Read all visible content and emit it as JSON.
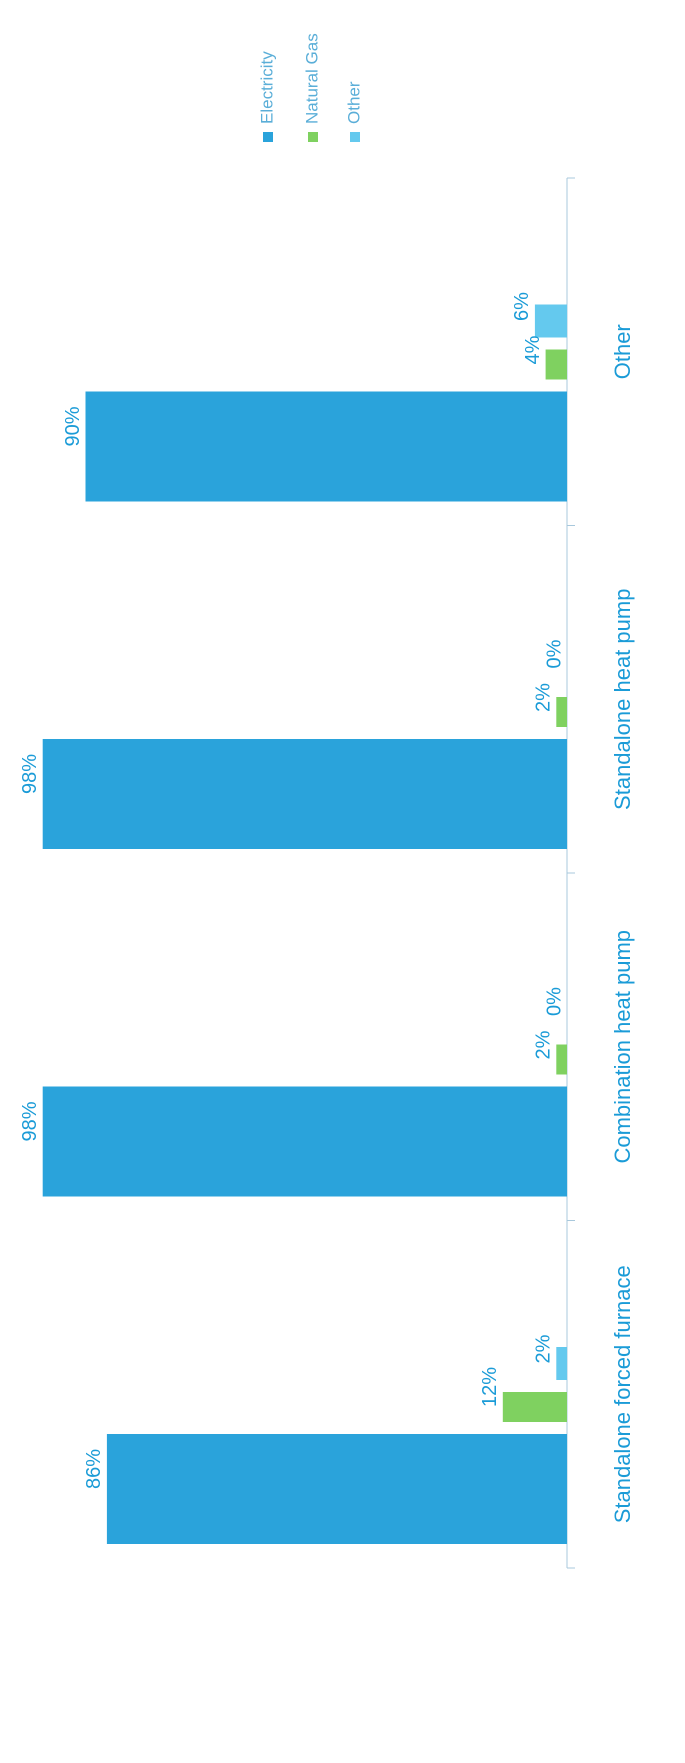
{
  "chart_data": {
    "type": "bar",
    "orientation": "rotated",
    "categories": [
      "Standalone forced furnace",
      "Combination heat pump",
      "Standalone heat pump",
      "Other"
    ],
    "series": [
      {
        "name": "Electricity",
        "values": [
          86,
          98,
          98,
          90
        ],
        "labels": [
          "86%",
          "98%",
          "98%",
          "90%"
        ]
      },
      {
        "name": "Natural Gas",
        "values": [
          12,
          2,
          2,
          4
        ],
        "labels": [
          "12%",
          "2%",
          "2%",
          "4%"
        ]
      },
      {
        "name": "Other",
        "values": [
          2,
          0,
          0,
          6
        ],
        "labels": [
          "2%",
          "0%",
          "0%",
          "6%"
        ]
      }
    ],
    "colors": {
      "Electricity": "#2aa3db",
      "Natural Gas": "#7fd160",
      "Other": "#64c9ee"
    },
    "ylim": [
      0,
      100
    ],
    "legend": "top-right",
    "grid": false
  }
}
